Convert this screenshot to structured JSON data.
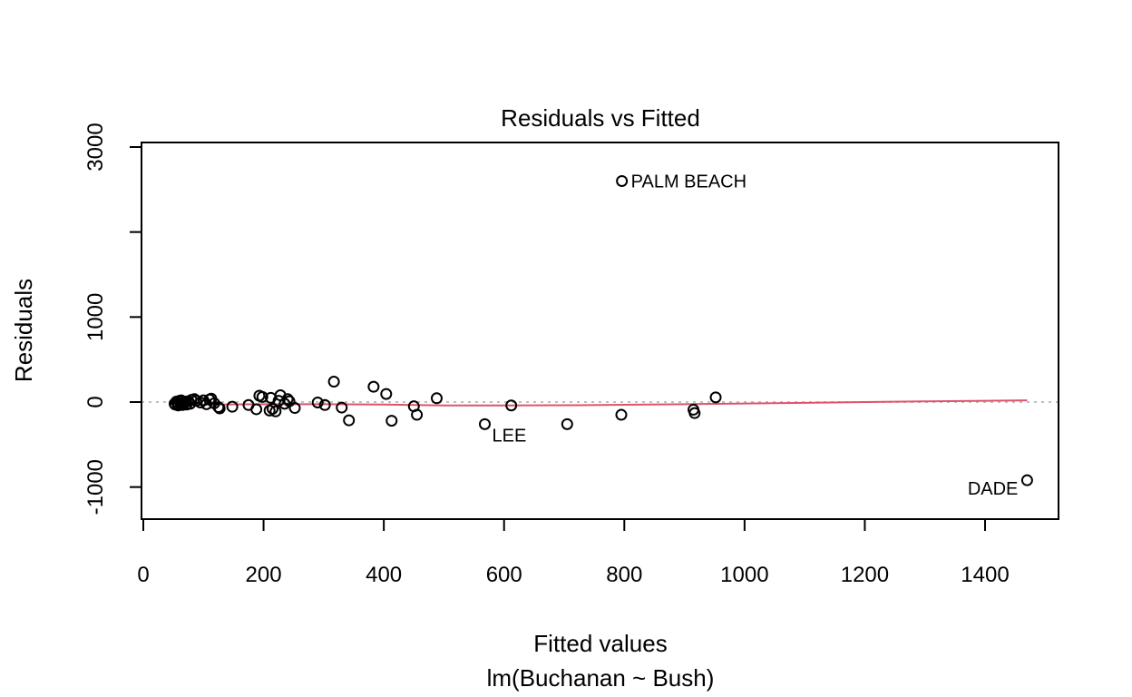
{
  "chart_data": {
    "type": "scatter",
    "title": "Residuals vs Fitted",
    "xlabel": "Fitted values",
    "sublabel": "lm(Buchanan ~ Bush)",
    "ylabel": "Residuals",
    "xlim": [
      0,
      1520
    ],
    "ylim": [
      -1400,
      3000
    ],
    "x_ticks": [
      0,
      200,
      400,
      600,
      800,
      1000,
      1200,
      1400
    ],
    "x_tick_labels": [
      "0",
      "200",
      "400",
      "600",
      "800",
      "1000",
      "1200",
      "1400"
    ],
    "y_ticks": [
      -1000,
      0,
      1000,
      2000,
      3000
    ],
    "y_tick_labels": [
      "-1000",
      "0",
      "1000",
      "",
      "3000"
    ],
    "zero_line": true,
    "grid": false,
    "point_color": "#000000",
    "smooth_color": "#DF536B",
    "zero_line_color": "#BEBEBE",
    "points": [
      {
        "x": 52,
        "y": -20
      },
      {
        "x": 53,
        "y": -30
      },
      {
        "x": 55,
        "y": 5
      },
      {
        "x": 57,
        "y": -25
      },
      {
        "x": 58,
        "y": -40
      },
      {
        "x": 60,
        "y": 15
      },
      {
        "x": 62,
        "y": -10
      },
      {
        "x": 63,
        "y": 20
      },
      {
        "x": 65,
        "y": -35
      },
      {
        "x": 67,
        "y": -15
      },
      {
        "x": 70,
        "y": 5
      },
      {
        "x": 72,
        "y": -30
      },
      {
        "x": 75,
        "y": 10
      },
      {
        "x": 78,
        "y": -20
      },
      {
        "x": 80,
        "y": 25
      },
      {
        "x": 85,
        "y": 35
      },
      {
        "x": 88,
        "y": 15
      },
      {
        "x": 95,
        "y": -5
      },
      {
        "x": 100,
        "y": 20
      },
      {
        "x": 105,
        "y": -25
      },
      {
        "x": 110,
        "y": 30
      },
      {
        "x": 113,
        "y": 40
      },
      {
        "x": 118,
        "y": -15
      },
      {
        "x": 125,
        "y": -60
      },
      {
        "x": 127,
        "y": -75
      },
      {
        "x": 148,
        "y": -55
      },
      {
        "x": 175,
        "y": -35
      },
      {
        "x": 188,
        "y": -85
      },
      {
        "x": 193,
        "y": 75
      },
      {
        "x": 198,
        "y": 60
      },
      {
        "x": 210,
        "y": -100
      },
      {
        "x": 212,
        "y": 50
      },
      {
        "x": 215,
        "y": -80
      },
      {
        "x": 220,
        "y": -110
      },
      {
        "x": 225,
        "y": 15
      },
      {
        "x": 228,
        "y": 80
      },
      {
        "x": 235,
        "y": -20
      },
      {
        "x": 240,
        "y": 35
      },
      {
        "x": 243,
        "y": 10
      },
      {
        "x": 252,
        "y": -70
      },
      {
        "x": 290,
        "y": -5
      },
      {
        "x": 302,
        "y": -35
      },
      {
        "x": 317,
        "y": 240
      },
      {
        "x": 330,
        "y": -65
      },
      {
        "x": 342,
        "y": -215
      },
      {
        "x": 383,
        "y": 180
      },
      {
        "x": 404,
        "y": 95
      },
      {
        "x": 413,
        "y": -220
      },
      {
        "x": 450,
        "y": -50
      },
      {
        "x": 455,
        "y": -150
      },
      {
        "x": 488,
        "y": 45
      },
      {
        "x": 568,
        "y": -260
      },
      {
        "x": 612,
        "y": -40
      },
      {
        "x": 705,
        "y": -260
      },
      {
        "x": 795,
        "y": -150
      },
      {
        "x": 796,
        "y": 2600
      },
      {
        "x": 915,
        "y": -90
      },
      {
        "x": 917,
        "y": -130
      },
      {
        "x": 952,
        "y": 55
      },
      {
        "x": 1470,
        "y": -920
      }
    ],
    "labeled_points": [
      {
        "label": "PALM BEACH",
        "x": 796,
        "y": 2600,
        "side": "right"
      },
      {
        "label": "LEE",
        "x": 568,
        "y": -260,
        "side": "below-right"
      },
      {
        "label": "DADE",
        "x": 1470,
        "y": -920,
        "side": "left"
      }
    ],
    "smooth_line": {
      "x": [
        50,
        100,
        200,
        300,
        400,
        500,
        600,
        700,
        800,
        900,
        1000,
        1100,
        1200,
        1300,
        1400,
        1470
      ],
      "y": [
        -38,
        -30,
        -25,
        -25,
        -30,
        -40,
        -40,
        -38,
        -32,
        -25,
        -18,
        -10,
        0,
        8,
        15,
        20
      ]
    }
  }
}
